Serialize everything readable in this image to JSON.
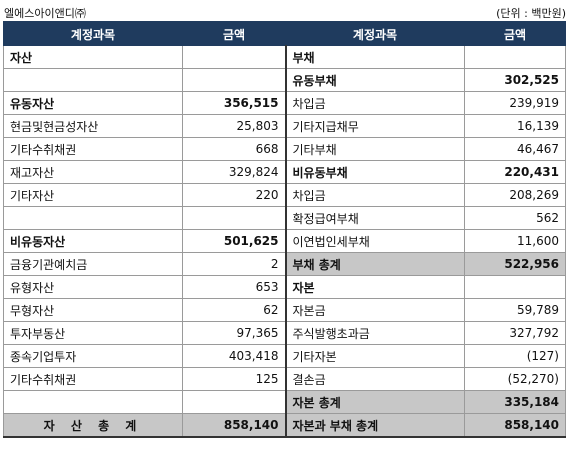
{
  "header": {
    "company": "엘에스아이앤디㈜",
    "unit": "(단위 : 백만원)"
  },
  "columns": {
    "left_title": "계정과목",
    "left_amount": "금액",
    "right_title": "계정과목",
    "right_amount": "금액"
  },
  "rows": [
    {
      "l": "자산",
      "lv": "",
      "r": "부채",
      "rv": ""
    },
    {
      "l": "",
      "lv": "",
      "r": "유동부채",
      "rv": "302,525"
    },
    {
      "l": "유동자산",
      "lv": "356,515",
      "r": "차입금",
      "rv": "239,919"
    },
    {
      "l": "현금및현금성자산",
      "lv": "25,803",
      "r": "기타지급채무",
      "rv": "16,139"
    },
    {
      "l": "기타수취채권",
      "lv": "668",
      "r": "기타부채",
      "rv": "46,467"
    },
    {
      "l": "재고자산",
      "lv": "329,824",
      "r": "비유동부채",
      "rv": "220,431"
    },
    {
      "l": "기타자산",
      "lv": "220",
      "r": "차입금",
      "rv": "208,269"
    },
    {
      "l": "",
      "lv": "",
      "r": "확정급여부채",
      "rv": "562"
    },
    {
      "l": "비유동자산",
      "lv": "501,625",
      "r": "이연법인세부채",
      "rv": "11,600"
    },
    {
      "l": "금융기관예치금",
      "lv": "2",
      "r": "부채 총계",
      "rv": "522,956"
    },
    {
      "l": "유형자산",
      "lv": "653",
      "r": "자본",
      "rv": ""
    },
    {
      "l": "무형자산",
      "lv": "62",
      "r": "자본금",
      "rv": "59,789"
    },
    {
      "l": "투자부동산",
      "lv": "97,365",
      "r": "주식발행초과금",
      "rv": "327,792"
    },
    {
      "l": "종속기업투자",
      "lv": "403,418",
      "r": "기타자본",
      "rv": "(127)"
    },
    {
      "l": "기타수취채권",
      "lv": "125",
      "r": "결손금",
      "rv": "(52,270)"
    },
    {
      "l": "",
      "lv": "",
      "r": "자본 총계",
      "rv": "335,184"
    }
  ],
  "totals": {
    "left_label": "자 산 총 계",
    "left_value": "858,140",
    "right_label": "자본과 부채 총계",
    "right_value": "858,140"
  }
}
